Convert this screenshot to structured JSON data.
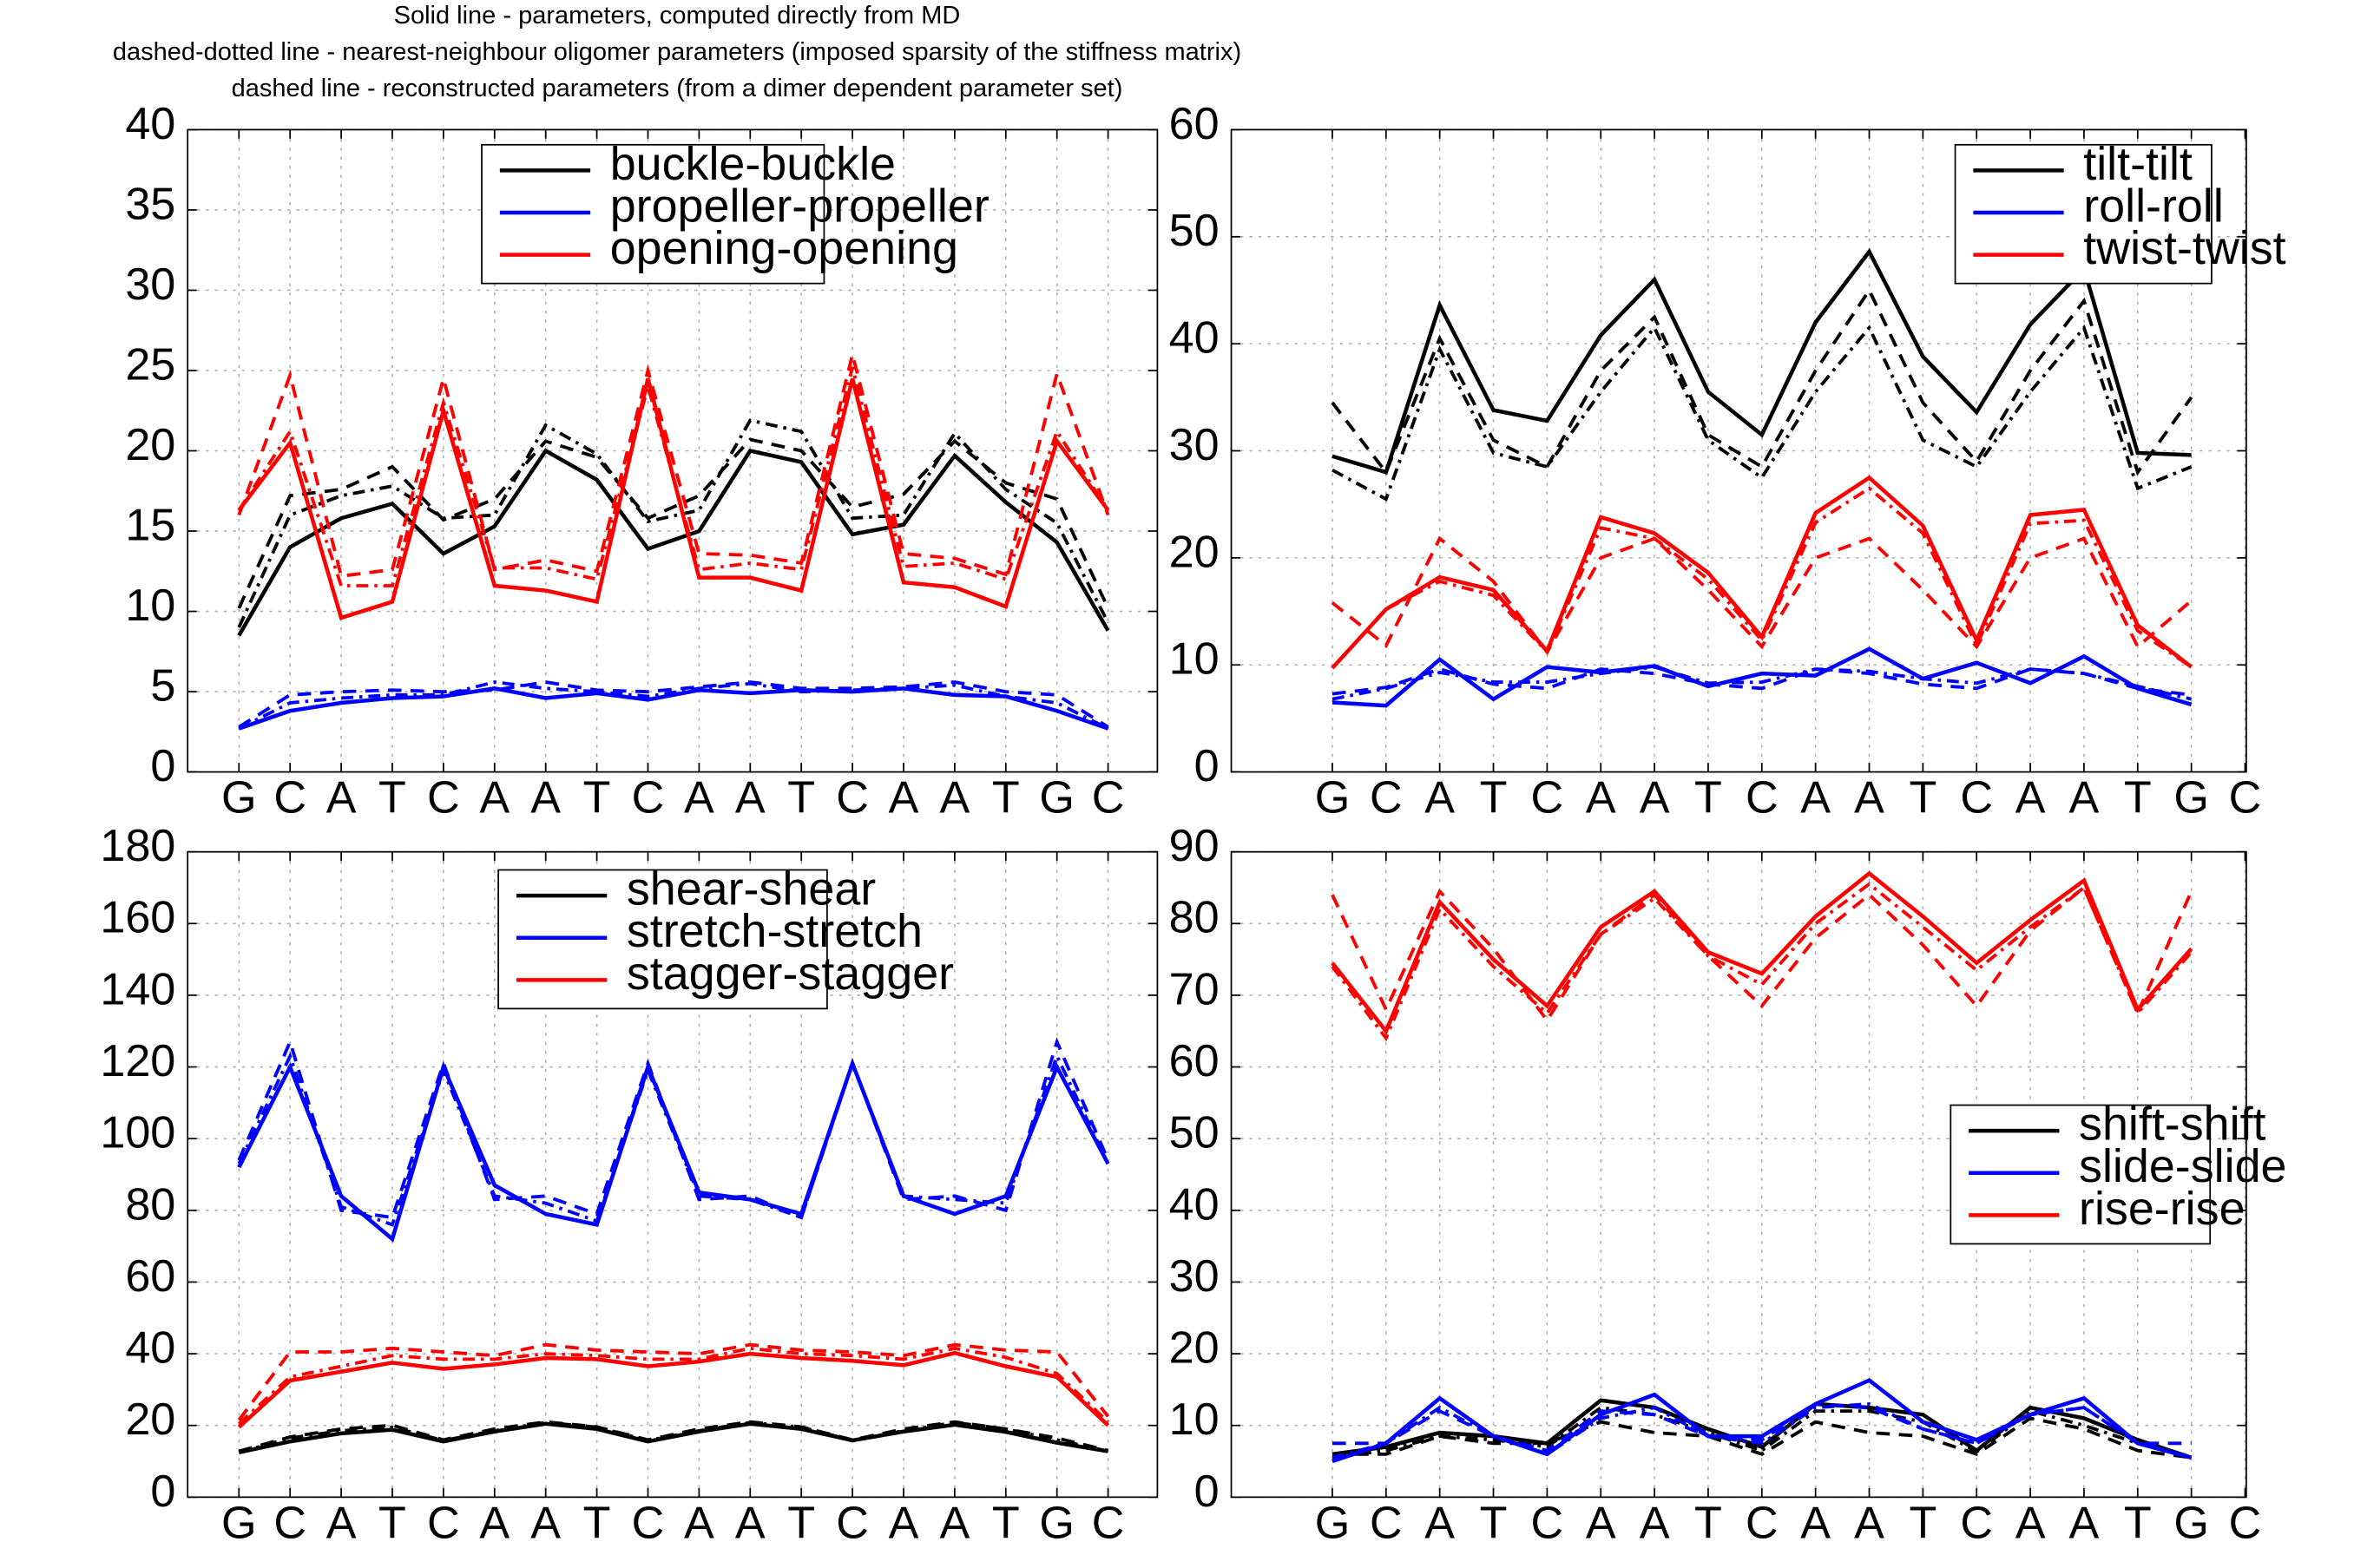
{
  "header": {
    "line1": "Solid line - parameters, computed directly from MD",
    "line2": "dashed-dotted line - nearest-neighbour oligomer parameters (imposed sparsity of the stiffness matrix)",
    "line3": "dashed line - reconstructed parameters (from a dimer dependent parameter set)"
  },
  "chart_data": [
    {
      "type": "line",
      "panel": "top-left",
      "categories": [
        "G",
        "C",
        "A",
        "T",
        "C",
        "A",
        "A",
        "T",
        "C",
        "A",
        "A",
        "T",
        "C",
        "A",
        "A",
        "T",
        "G",
        "C"
      ],
      "ylim": [
        0,
        40
      ],
      "yticks": [
        0,
        5,
        10,
        15,
        20,
        25,
        30,
        35,
        40
      ],
      "grid": true,
      "legend_position": "top-center",
      "series": [
        {
          "name": "buckle-buckle",
          "color": "#000000",
          "solid": [
            8.5,
            14.0,
            15.8,
            16.7,
            13.6,
            15.3,
            20.0,
            18.2,
            13.9,
            15.0,
            20.0,
            19.3,
            14.8,
            15.4,
            19.7,
            16.8,
            14.3,
            8.8
          ],
          "dashdot": [
            9.0,
            16.0,
            17.2,
            17.8,
            15.8,
            16.0,
            21.6,
            19.8,
            15.6,
            16.3,
            21.9,
            21.2,
            15.8,
            16.0,
            21.1,
            17.6,
            15.5,
            9.3
          ],
          "dashed": [
            10.2,
            17.2,
            17.6,
            19.0,
            15.7,
            17.0,
            20.6,
            19.6,
            15.8,
            17.2,
            20.7,
            20.0,
            16.5,
            17.3,
            20.6,
            18.0,
            17.0,
            10.2
          ]
        },
        {
          "name": "propeller-propeller",
          "color": "#0000ff",
          "solid": [
            2.7,
            3.8,
            4.3,
            4.6,
            4.7,
            5.2,
            4.6,
            4.9,
            4.5,
            5.1,
            4.9,
            5.1,
            5.0,
            5.2,
            4.8,
            4.7,
            3.8,
            2.7
          ],
          "dashdot": [
            2.7,
            4.3,
            4.6,
            4.8,
            4.8,
            5.6,
            5.2,
            5.0,
            4.7,
            5.2,
            5.5,
            5.0,
            5.1,
            5.2,
            5.4,
            4.7,
            4.3,
            2.7
          ],
          "dashed": [
            2.8,
            4.8,
            5.0,
            5.1,
            5.0,
            5.1,
            5.6,
            5.1,
            5.0,
            5.3,
            5.6,
            5.2,
            5.2,
            5.3,
            5.6,
            5.0,
            4.8,
            2.8
          ]
        },
        {
          "name": "opening-opening",
          "color": "#ff0000",
          "solid": [
            16.3,
            20.5,
            9.6,
            10.6,
            22.5,
            11.6,
            11.3,
            10.6,
            24.5,
            12.1,
            12.1,
            11.3,
            24.5,
            11.8,
            11.5,
            10.3,
            20.6,
            16.3
          ],
          "dashdot": [
            16.3,
            21.2,
            11.6,
            11.6,
            23.0,
            12.7,
            12.7,
            12.0,
            24.0,
            12.6,
            13.0,
            12.6,
            25.2,
            12.8,
            13.0,
            12.0,
            21.2,
            16.3
          ],
          "dashed": [
            16.0,
            24.7,
            12.2,
            12.6,
            24.5,
            12.6,
            13.2,
            12.5,
            25.0,
            13.6,
            13.5,
            13.0,
            26.0,
            13.6,
            13.3,
            12.3,
            24.8,
            16.0
          ]
        }
      ]
    },
    {
      "type": "line",
      "panel": "top-right",
      "categories": [
        "G",
        "C",
        "A",
        "T",
        "C",
        "A",
        "A",
        "T",
        "C",
        "A",
        "A",
        "T",
        "C",
        "A",
        "A",
        "T",
        "G",
        "C"
      ],
      "ylim": [
        0,
        60
      ],
      "yticks": [
        0,
        10,
        20,
        30,
        40,
        50,
        60
      ],
      "grid": true,
      "legend_position": "top-right",
      "series": [
        {
          "name": "tilt-tilt",
          "color": "#000000",
          "solid": [
            29.5,
            28.0,
            43.6,
            33.8,
            32.8,
            40.8,
            46.0,
            35.5,
            31.5,
            42.0,
            48.6,
            38.8,
            33.6,
            41.8,
            47.0,
            29.8,
            29.6
          ],
          "dashdot": [
            28.2,
            25.5,
            39.5,
            29.8,
            28.5,
            35.5,
            41.5,
            31.0,
            27.5,
            35.5,
            41.5,
            31.0,
            28.5,
            35.5,
            41.5,
            26.5,
            28.5
          ],
          "dashed": [
            34.5,
            28.0,
            40.5,
            31.0,
            28.5,
            37.5,
            42.5,
            31.5,
            28.5,
            37.5,
            45.0,
            34.5,
            29.0,
            37.5,
            44.0,
            28.0,
            35.0
          ]
        },
        {
          "name": "roll-roll",
          "color": "#0000ff",
          "solid": [
            6.5,
            6.2,
            10.5,
            6.8,
            9.8,
            9.3,
            9.9,
            8.0,
            9.2,
            9.0,
            11.5,
            8.7,
            10.2,
            8.3,
            10.8,
            7.8,
            6.3
          ],
          "dashdot": [
            6.8,
            7.8,
            9.3,
            8.4,
            8.4,
            9.2,
            9.8,
            8.3,
            8.4,
            9.6,
            9.4,
            8.7,
            8.3,
            9.6,
            9.2,
            8.0,
            6.8
          ],
          "dashed": [
            7.3,
            7.9,
            9.6,
            8.2,
            7.8,
            9.6,
            9.2,
            8.2,
            7.8,
            9.6,
            9.2,
            8.2,
            7.8,
            9.6,
            9.2,
            7.8,
            7.2
          ]
        },
        {
          "name": "twist-twist",
          "color": "#ff0000",
          "solid": [
            9.7,
            15.2,
            18.2,
            17.0,
            11.3,
            23.8,
            22.3,
            18.6,
            12.6,
            24.2,
            27.5,
            23.0,
            12.3,
            24.0,
            24.5,
            13.7,
            9.8
          ],
          "dashdot": [
            9.7,
            15.2,
            17.8,
            16.5,
            11.2,
            22.8,
            21.8,
            18.0,
            12.3,
            23.3,
            26.5,
            22.3,
            11.8,
            23.2,
            23.5,
            13.2,
            9.8
          ],
          "dashed": [
            15.8,
            11.8,
            21.8,
            17.8,
            11.2,
            20.0,
            21.8,
            17.0,
            11.7,
            20.0,
            21.8,
            17.0,
            11.7,
            20.0,
            21.8,
            11.7,
            16.0
          ]
        }
      ]
    },
    {
      "type": "line",
      "panel": "bottom-left",
      "categories": [
        "G",
        "C",
        "A",
        "T",
        "C",
        "A",
        "A",
        "T",
        "C",
        "A",
        "A",
        "T",
        "C",
        "A",
        "A",
        "T",
        "G",
        "C"
      ],
      "ylim": [
        0,
        180
      ],
      "yticks": [
        0,
        20,
        40,
        60,
        80,
        100,
        120,
        140,
        160,
        180
      ],
      "grid": true,
      "legend_position": "top-center",
      "series": [
        {
          "name": "shear-shear",
          "color": "#000000",
          "solid": [
            12.5,
            15.5,
            17.8,
            18.8,
            15.5,
            18.3,
            20.5,
            19.0,
            15.5,
            18.3,
            20.5,
            19.0,
            15.8,
            18.3,
            20.2,
            18.2,
            15.2,
            12.8
          ],
          "dashdot": [
            12.5,
            16.5,
            18.5,
            19.5,
            15.8,
            18.5,
            20.8,
            19.5,
            15.8,
            18.5,
            20.8,
            19.5,
            15.8,
            18.5,
            20.8,
            19.0,
            16.0,
            12.8
          ],
          "dashed": [
            12.8,
            16.8,
            19.0,
            20.0,
            16.0,
            19.0,
            21.0,
            19.6,
            16.0,
            19.0,
            21.0,
            19.6,
            16.0,
            19.0,
            21.0,
            19.0,
            16.5,
            13.0
          ]
        },
        {
          "name": "stretch-stretch",
          "color": "#0000ff",
          "solid": [
            92,
            120,
            84,
            72,
            120,
            87,
            79,
            76,
            120,
            85,
            83,
            79,
            121,
            84,
            79,
            84,
            120,
            93
          ],
          "dashdot": [
            93,
            123,
            81,
            76,
            119,
            84,
            82,
            77,
            119,
            84,
            83,
            78,
            121,
            84,
            83,
            82,
            123,
            93
          ],
          "dashed": [
            94,
            127,
            80,
            78,
            121,
            83,
            84,
            79,
            121,
            83,
            84,
            78,
            121,
            83,
            84,
            80,
            127,
            94
          ]
        },
        {
          "name": "stagger-stagger",
          "color": "#ff0000",
          "solid": [
            19.5,
            32.5,
            35.0,
            37.5,
            35.8,
            37.0,
            38.8,
            38.5,
            36.5,
            37.8,
            40.0,
            38.8,
            38.0,
            36.8,
            40.2,
            36.5,
            33.5,
            20.0
          ],
          "dashdot": [
            20.5,
            33.5,
            36.5,
            39.5,
            38.5,
            38.5,
            40.0,
            39.5,
            38.5,
            38.5,
            41.5,
            40.0,
            39.5,
            38.5,
            41.5,
            39.0,
            34.5,
            21.0
          ],
          "dashed": [
            21.5,
            40.5,
            40.5,
            41.5,
            40.5,
            39.5,
            42.5,
            41.0,
            40.5,
            40.0,
            42.5,
            41.0,
            40.5,
            39.5,
            42.5,
            41.0,
            40.5,
            22.5
          ]
        }
      ]
    },
    {
      "type": "line",
      "panel": "bottom-right",
      "categories": [
        "G",
        "C",
        "A",
        "T",
        "C",
        "A",
        "A",
        "T",
        "C",
        "A",
        "A",
        "T",
        "C",
        "A",
        "A",
        "T",
        "G",
        "C"
      ],
      "ylim": [
        0,
        90
      ],
      "yticks": [
        0,
        10,
        20,
        30,
        40,
        50,
        60,
        70,
        80,
        90
      ],
      "grid": true,
      "legend_position": "center-right",
      "series": [
        {
          "name": "shift-shift",
          "color": "#000000",
          "solid": [
            6.0,
            7.0,
            9.0,
            8.5,
            7.5,
            13.5,
            12.5,
            9.5,
            7.0,
            13.0,
            12.5,
            11.5,
            6.5,
            12.5,
            11.0,
            8.0,
            5.5
          ],
          "dashdot": [
            5.5,
            6.5,
            8.5,
            8.0,
            7.0,
            12.5,
            11.5,
            9.0,
            6.5,
            12.0,
            12.0,
            10.5,
            6.3,
            12.0,
            10.0,
            7.5,
            5.5
          ],
          "dashed": [
            6.0,
            6.0,
            8.5,
            7.5,
            7.5,
            10.5,
            9.0,
            8.5,
            6.0,
            10.5,
            9.0,
            8.5,
            6.0,
            11.0,
            9.5,
            6.5,
            5.5
          ]
        },
        {
          "name": "slide-slide",
          "color": "#0000ff",
          "solid": [
            5.0,
            7.5,
            13.8,
            8.5,
            6.0,
            11.5,
            14.3,
            8.5,
            8.5,
            13.0,
            16.3,
            10.5,
            8.0,
            11.5,
            13.8,
            7.5,
            5.5
          ],
          "dashdot": [
            5.5,
            7.5,
            12.5,
            8.5,
            6.0,
            11.0,
            12.5,
            8.5,
            7.5,
            12.5,
            13.0,
            9.5,
            7.5,
            11.5,
            12.5,
            7.5,
            5.5
          ],
          "dashed": [
            7.5,
            7.5,
            12.0,
            8.5,
            6.5,
            12.0,
            11.5,
            8.5,
            8.0,
            13.0,
            12.5,
            9.5,
            7.5,
            11.5,
            12.5,
            7.5,
            7.5
          ]
        },
        {
          "name": "rise-rise",
          "color": "#ff0000",
          "solid": [
            74.5,
            65.0,
            83.0,
            75.0,
            68.5,
            79.5,
            84.5,
            76.0,
            73.0,
            81.0,
            87.0,
            81.0,
            74.5,
            80.5,
            86.0,
            68.0,
            76.5
          ],
          "dashdot": [
            74.0,
            64.0,
            82.0,
            74.0,
            67.5,
            78.5,
            83.5,
            75.5,
            71.5,
            80.0,
            85.5,
            79.5,
            73.5,
            79.5,
            85.0,
            67.5,
            76.0
          ],
          "dashed": [
            84.0,
            68.0,
            84.5,
            76.5,
            66.5,
            78.5,
            84.0,
            75.5,
            68.5,
            78.0,
            84.0,
            77.0,
            68.5,
            79.0,
            85.0,
            67.5,
            84.5
          ]
        }
      ]
    }
  ]
}
